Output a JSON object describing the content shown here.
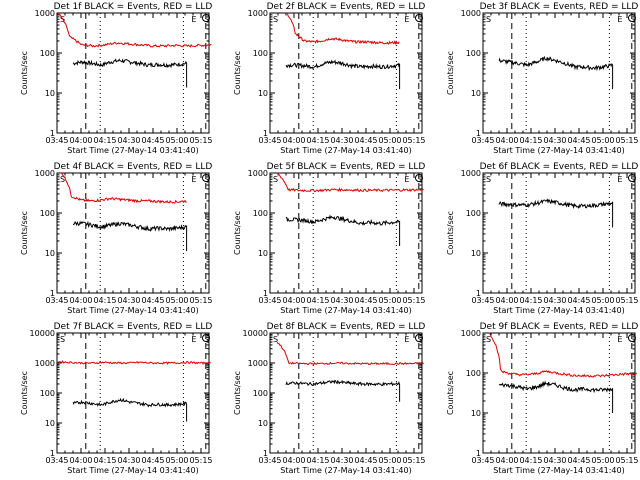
{
  "figure": {
    "panel_title_suffix": "BLACK = Events, RED = LLD",
    "xlabel": "Start Time (27-May-14 03:41:40)",
    "ylabel": "Counts/sec",
    "x_ticks": [
      "03:45",
      "04:00",
      "04:15",
      "04:30",
      "04:45",
      "05:00",
      "05:15"
    ],
    "y_ticks": [
      "1",
      "10",
      "100",
      "1000"
    ],
    "y_ticks_wide": [
      "1",
      "10",
      "100",
      "1000",
      "10000"
    ],
    "saa_labels": {
      "s": "S",
      "e": "E"
    },
    "colors": {
      "events": "#000000",
      "lld": "#dd0000"
    }
  },
  "chart_data": [
    {
      "type": "line",
      "title": "Det 1f BLACK = Events, RED = LLD",
      "ylim": [
        1,
        1000
      ],
      "y_scale": "log",
      "x_range": [
        "03:45",
        "05:20"
      ],
      "series": [
        {
          "name": "Events",
          "color": "#000000",
          "x_min": [
            4.0,
            5.2
          ],
          "values": [
            55,
            60,
            55,
            50,
            60,
            65,
            60,
            55,
            50,
            52,
            50,
            52,
            55
          ]
        },
        {
          "name": "LLD",
          "color": "#dd0000",
          "x_min": [
            0.5,
            96.5
          ],
          "values": [
            1000,
            250,
            160,
            150,
            160,
            180,
            170,
            160,
            150,
            150,
            155,
            150,
            155,
            160
          ]
        }
      ]
    },
    {
      "type": "line",
      "title": "Det 2f BLACK = Events, RED = LLD",
      "ylim": [
        1,
        1000
      ],
      "y_scale": "log",
      "x_range": [
        "03:45",
        "05:20"
      ],
      "series": [
        {
          "name": "Events",
          "color": "#000000",
          "x_min": [
            10,
            81
          ],
          "values": [
            50,
            50,
            48,
            45,
            55,
            60,
            55,
            48,
            45,
            47,
            45,
            47,
            50
          ]
        },
        {
          "name": "LLD",
          "color": "#dd0000",
          "x_min": [
            10.5,
            81
          ],
          "values": [
            1000,
            300,
            200,
            190,
            200,
            230,
            220,
            200,
            190,
            190,
            185,
            180,
            180,
            185
          ]
        }
      ]
    },
    {
      "type": "line",
      "title": "Det 3f BLACK = Events, RED = LLD",
      "ylim": [
        1,
        1000
      ],
      "y_scale": "log",
      "x_range": [
        "03:45",
        "05:20"
      ],
      "series": [
        {
          "name": "Events",
          "color": "#000000",
          "x_min": [
            10,
            81
          ],
          "values": [
            65,
            60,
            55,
            50,
            60,
            75,
            65,
            55,
            45,
            45,
            42,
            45,
            50
          ]
        }
      ]
    },
    {
      "type": "line",
      "title": "Det 4f BLACK = Events, RED = LLD",
      "ylim": [
        1,
        1000
      ],
      "y_scale": "log",
      "x_range": [
        "03:45",
        "05:20"
      ],
      "series": [
        {
          "name": "Events",
          "color": "#000000",
          "x_min": [
            4.0,
            5.2
          ],
          "values": [
            55,
            55,
            50,
            45,
            50,
            55,
            50,
            45,
            40,
            42,
            40,
            42,
            45
          ]
        },
        {
          "name": "LLD",
          "color": "#dd0000",
          "x_min": [
            3,
            81
          ],
          "values": [
            1000,
            260,
            210,
            200,
            210,
            230,
            220,
            210,
            200,
            200,
            195,
            190,
            190,
            200
          ]
        }
      ]
    },
    {
      "type": "line",
      "title": "Det 5f BLACK = Events, RED = LLD",
      "ylim": [
        1,
        1000
      ],
      "y_scale": "log",
      "x_range": [
        "03:45",
        "05:20"
      ],
      "series": [
        {
          "name": "Events",
          "color": "#000000",
          "x_min": [
            10,
            81
          ],
          "values": [
            70,
            68,
            65,
            60,
            70,
            80,
            70,
            62,
            55,
            58,
            55,
            58,
            60
          ]
        },
        {
          "name": "LLD",
          "color": "#dd0000",
          "x_min": [
            4.5,
            96
          ],
          "values": [
            1000,
            380,
            370,
            365,
            370,
            385,
            380,
            375,
            370,
            370,
            372,
            375,
            378,
            380
          ]
        }
      ]
    },
    {
      "type": "line",
      "title": "Det 6f BLACK = Events, RED = LLD",
      "ylim": [
        1,
        1000
      ],
      "y_scale": "log",
      "x_range": [
        "03:45",
        "05:20"
      ],
      "series": [
        {
          "name": "Events",
          "color": "#000000",
          "x_min": [
            10,
            81
          ],
          "values": [
            170,
            165,
            160,
            160,
            175,
            200,
            185,
            165,
            150,
            150,
            155,
            165,
            175
          ]
        }
      ]
    },
    {
      "type": "line",
      "title": "Det 7f BLACK = Events, RED = LLD",
      "ylim": [
        1,
        10000
      ],
      "y_scale": "log",
      "x_range": [
        "03:45",
        "05:20"
      ],
      "series": [
        {
          "name": "Events",
          "color": "#000000",
          "x_min": [
            10,
            81
          ],
          "values": [
            45,
            50,
            45,
            40,
            50,
            60,
            50,
            45,
            40,
            42,
            40,
            42,
            45
          ]
        },
        {
          "name": "LLD",
          "color": "#dd0000",
          "x_min": [
            0.5,
            96
          ],
          "values": [
            1100,
            1050,
            1000,
            1000,
            1050,
            1000,
            1000,
            1050,
            1000,
            1000,
            1000,
            1050,
            1000,
            1000
          ]
        }
      ]
    },
    {
      "type": "line",
      "title": "Det 8f BLACK = Events, RED = LLD",
      "ylim": [
        1,
        10000
      ],
      "y_scale": "log",
      "x_range": [
        "03:45",
        "05:20"
      ],
      "series": [
        {
          "name": "Events",
          "color": "#000000",
          "x_min": [
            10,
            81
          ],
          "values": [
            210,
            215,
            205,
            200,
            220,
            240,
            225,
            210,
            200,
            200,
            195,
            200,
            205
          ]
        },
        {
          "name": "LLD",
          "color": "#dd0000",
          "x_min": [
            4.5,
            96
          ],
          "values": [
            5000,
            1000,
            960,
            950,
            960,
            990,
            980,
            960,
            950,
            950,
            950,
            955,
            960,
            960
          ]
        }
      ]
    },
    {
      "type": "line",
      "title": "Det 9f BLACK = Events, RED = LLD",
      "ylim": [
        1,
        1000
      ],
      "y_scale": "log",
      "x_range": [
        "03:45",
        "05:20"
      ],
      "series": [
        {
          "name": "Events",
          "color": "#000000",
          "x_min": [
            10,
            81
          ],
          "values": [
            50,
            50,
            45,
            40,
            45,
            55,
            50,
            42,
            38,
            40,
            38,
            38,
            40
          ]
        },
        {
          "name": "LLD",
          "color": "#dd0000",
          "x_min": [
            4,
            96
          ],
          "values": [
            1000,
            110,
            95,
            90,
            95,
            110,
            100,
            90,
            85,
            85,
            85,
            90,
            95,
            95
          ]
        }
      ]
    }
  ]
}
